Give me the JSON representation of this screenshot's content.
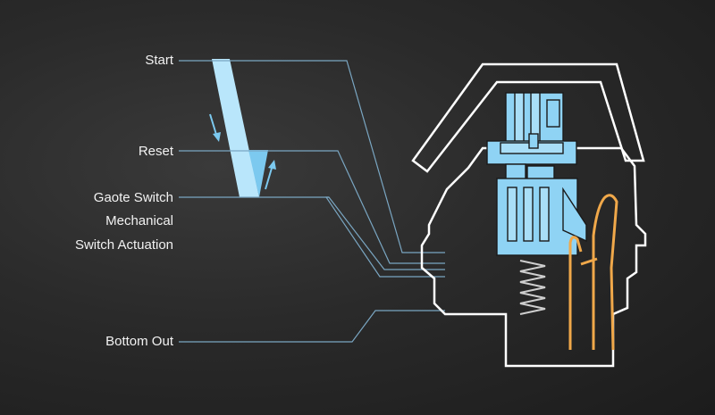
{
  "labels": {
    "start": "Start",
    "reset": "Reset",
    "gaote_switch": "Gaote Switch",
    "mechanical": "Mechanical",
    "switch_actuation": "Switch Actuation",
    "bottom_out": "Bottom Out"
  },
  "colors": {
    "background": "#222222",
    "stem_blue": "#8fd3f4",
    "spring_orange": "#f0a84a",
    "leader_blue": "#6fa8c8",
    "housing_white": "#ffffff"
  }
}
